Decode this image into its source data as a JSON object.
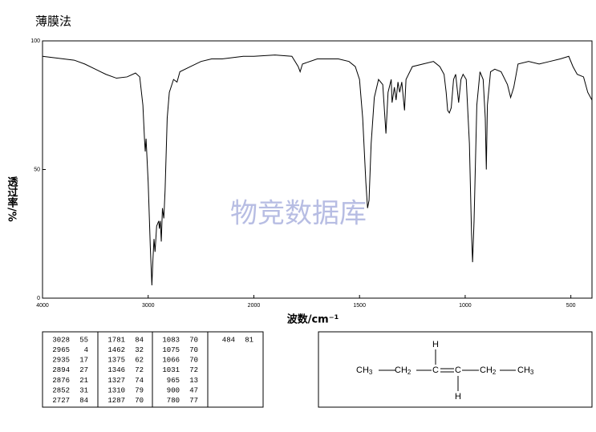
{
  "chart_data": {
    "type": "line",
    "title": "薄膜法",
    "watermark": "物竞数据库",
    "x_label": "波数/cm⁻¹",
    "y_label": "透过率/%",
    "xlim": [
      4000,
      400
    ],
    "x_break": 2000,
    "ylim": [
      0,
      100
    ],
    "xticks": [
      4000,
      3000,
      2000,
      1500,
      1000,
      500
    ],
    "yticks": [
      0,
      50,
      100
    ],
    "color": "#000000",
    "x": [
      4000,
      3900,
      3800,
      3700,
      3600,
      3500,
      3400,
      3300,
      3200,
      3120,
      3080,
      3050,
      3035,
      3028,
      3020,
      3000,
      2980,
      2965,
      2955,
      2945,
      2935,
      2920,
      2900,
      2894,
      2885,
      2876,
      2865,
      2852,
      2840,
      2820,
      2800,
      2760,
      2727,
      2700,
      2600,
      2500,
      2400,
      2300,
      2200,
      2100,
      2000,
      1900,
      1820,
      1790,
      1781,
      1770,
      1700,
      1600,
      1550,
      1520,
      1500,
      1485,
      1470,
      1462,
      1455,
      1445,
      1430,
      1410,
      1390,
      1375,
      1365,
      1350,
      1346,
      1335,
      1327,
      1318,
      1310,
      1300,
      1287,
      1280,
      1250,
      1200,
      1150,
      1120,
      1100,
      1090,
      1083,
      1075,
      1066,
      1055,
      1045,
      1031,
      1020,
      1010,
      995,
      980,
      970,
      965,
      958,
      945,
      930,
      915,
      905,
      900,
      895,
      880,
      860,
      830,
      800,
      785,
      770,
      750,
      700,
      650,
      600,
      550,
      510,
      490,
      470,
      440,
      420,
      400
    ],
    "values": [
      94,
      93.5,
      93,
      92.5,
      91,
      89,
      87,
      85.5,
      86,
      87.5,
      86,
      75,
      62,
      57,
      62,
      45,
      20,
      5,
      15,
      23,
      18,
      28,
      30,
      27,
      30,
      22,
      35,
      31,
      42,
      70,
      80,
      85,
      84,
      88,
      90,
      92,
      93,
      93,
      93.5,
      94,
      94,
      94.5,
      94,
      90,
      88,
      91,
      93,
      93,
      92,
      90,
      85,
      70,
      45,
      35,
      38,
      60,
      78,
      85,
      83,
      64,
      80,
      85,
      76,
      82,
      77,
      84,
      80,
      84,
      73,
      85,
      90,
      91,
      92,
      90,
      87,
      80,
      73,
      72,
      74,
      85,
      87,
      76,
      85,
      87,
      85,
      60,
      25,
      14,
      30,
      75,
      88,
      85,
      70,
      50,
      75,
      88,
      89,
      88,
      83,
      78,
      82,
      91,
      92,
      91,
      92,
      93,
      94,
      90,
      87,
      86,
      80,
      77
    ]
  },
  "table": {
    "columns": [
      [
        [
          3028,
          55
        ],
        [
          2965,
          4
        ],
        [
          2935,
          17
        ],
        [
          2894,
          27
        ],
        [
          2876,
          21
        ],
        [
          2852,
          31
        ],
        [
          2727,
          84
        ]
      ],
      [
        [
          1781,
          84
        ],
        [
          1462,
          32
        ],
        [
          1375,
          62
        ],
        [
          1346,
          72
        ],
        [
          1327,
          74
        ],
        [
          1310,
          79
        ],
        [
          1287,
          70
        ]
      ],
      [
        [
          1083,
          70
        ],
        [
          1075,
          70
        ],
        [
          1066,
          70
        ],
        [
          1031,
          72
        ],
        [
          965,
          13
        ],
        [
          900,
          47
        ],
        [
          780,
          77
        ]
      ],
      [
        [
          484,
          81
        ]
      ]
    ]
  },
  "structure": {
    "atoms": [
      {
        "text": "H"
      },
      {
        "text": "CH",
        "sub": "3"
      },
      {
        "text": "CH",
        "sub": "2"
      },
      {
        "text": "C"
      },
      {
        "text": "C"
      },
      {
        "text": "CH",
        "sub": "2"
      },
      {
        "text": "CH",
        "sub": "3"
      },
      {
        "text": "H"
      }
    ]
  }
}
